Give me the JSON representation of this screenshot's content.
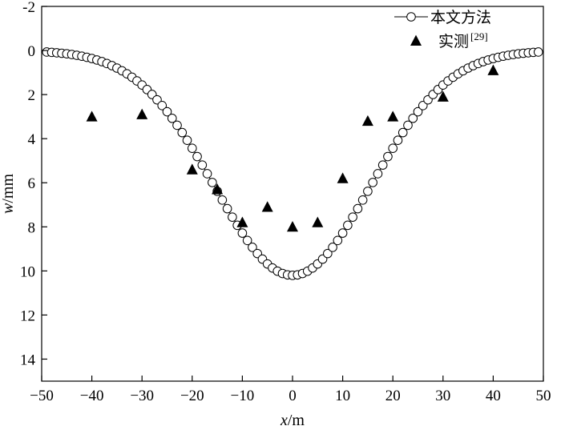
{
  "chart_data": {
    "type": "scatter",
    "title": "",
    "xlabel": "x/m",
    "xlabel_parts": {
      "var": "x",
      "unit": "/m"
    },
    "ylabel": "w/mm",
    "ylabel_parts": {
      "var": "w",
      "unit": "/mm"
    },
    "xlim": [
      -50,
      50
    ],
    "ylim": [
      -2,
      15
    ],
    "y_inverted": true,
    "x_ticks": [
      -50,
      -40,
      -30,
      -20,
      -10,
      0,
      10,
      20,
      30,
      40,
      50
    ],
    "x_tick_labels": [
      "−50",
      "−40",
      "−30",
      "−20",
      "−10",
      "0",
      "10",
      "20",
      "30",
      "40",
      "50"
    ],
    "y_ticks": [
      -2,
      0,
      2,
      4,
      6,
      8,
      10,
      12,
      14
    ],
    "y_tick_labels": [
      "-2",
      "0",
      "2",
      "4",
      "6",
      "8",
      "10",
      "12",
      "14"
    ],
    "grid": false,
    "legend_position": "top-right",
    "series": [
      {
        "name": "本文方法",
        "kind": "line-circle",
        "color": "#000000",
        "curve": {
          "smax_mm": 10.2,
          "i_m": 15.5,
          "x_step_m": 1
        }
      },
      {
        "name": "实测",
        "name_superscript": "[29]",
        "kind": "triangle",
        "color": "#000000",
        "x": [
          -40,
          -30,
          -20,
          -15,
          -10,
          -5,
          0,
          5,
          10,
          15,
          20,
          30,
          40
        ],
        "y": [
          3.0,
          2.9,
          5.4,
          6.3,
          7.8,
          7.1,
          8.0,
          7.8,
          5.8,
          3.2,
          3.0,
          2.1,
          0.9
        ]
      }
    ]
  }
}
